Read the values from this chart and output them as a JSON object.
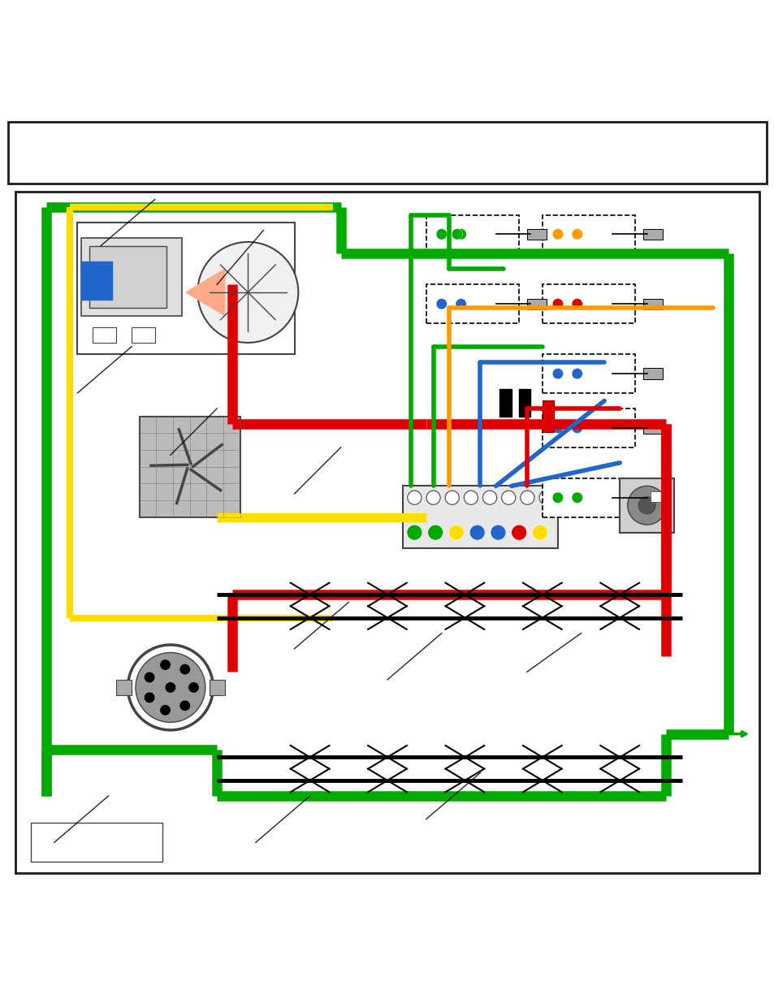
{
  "fig_width": 9.54,
  "fig_height": 12.35,
  "bg_color": "#ffffff",
  "border_color": "#1a1a1a",
  "colors": {
    "green": "#00aa00",
    "yellow": "#ffdd00",
    "red": "#dd0000",
    "blue": "#2266cc",
    "orange": "#ff9900",
    "black": "#111111",
    "dark_gray": "#444444",
    "light_gray": "#cccccc",
    "mid_gray": "#888888"
  },
  "lw_main": 9,
  "lw_wire": 4
}
